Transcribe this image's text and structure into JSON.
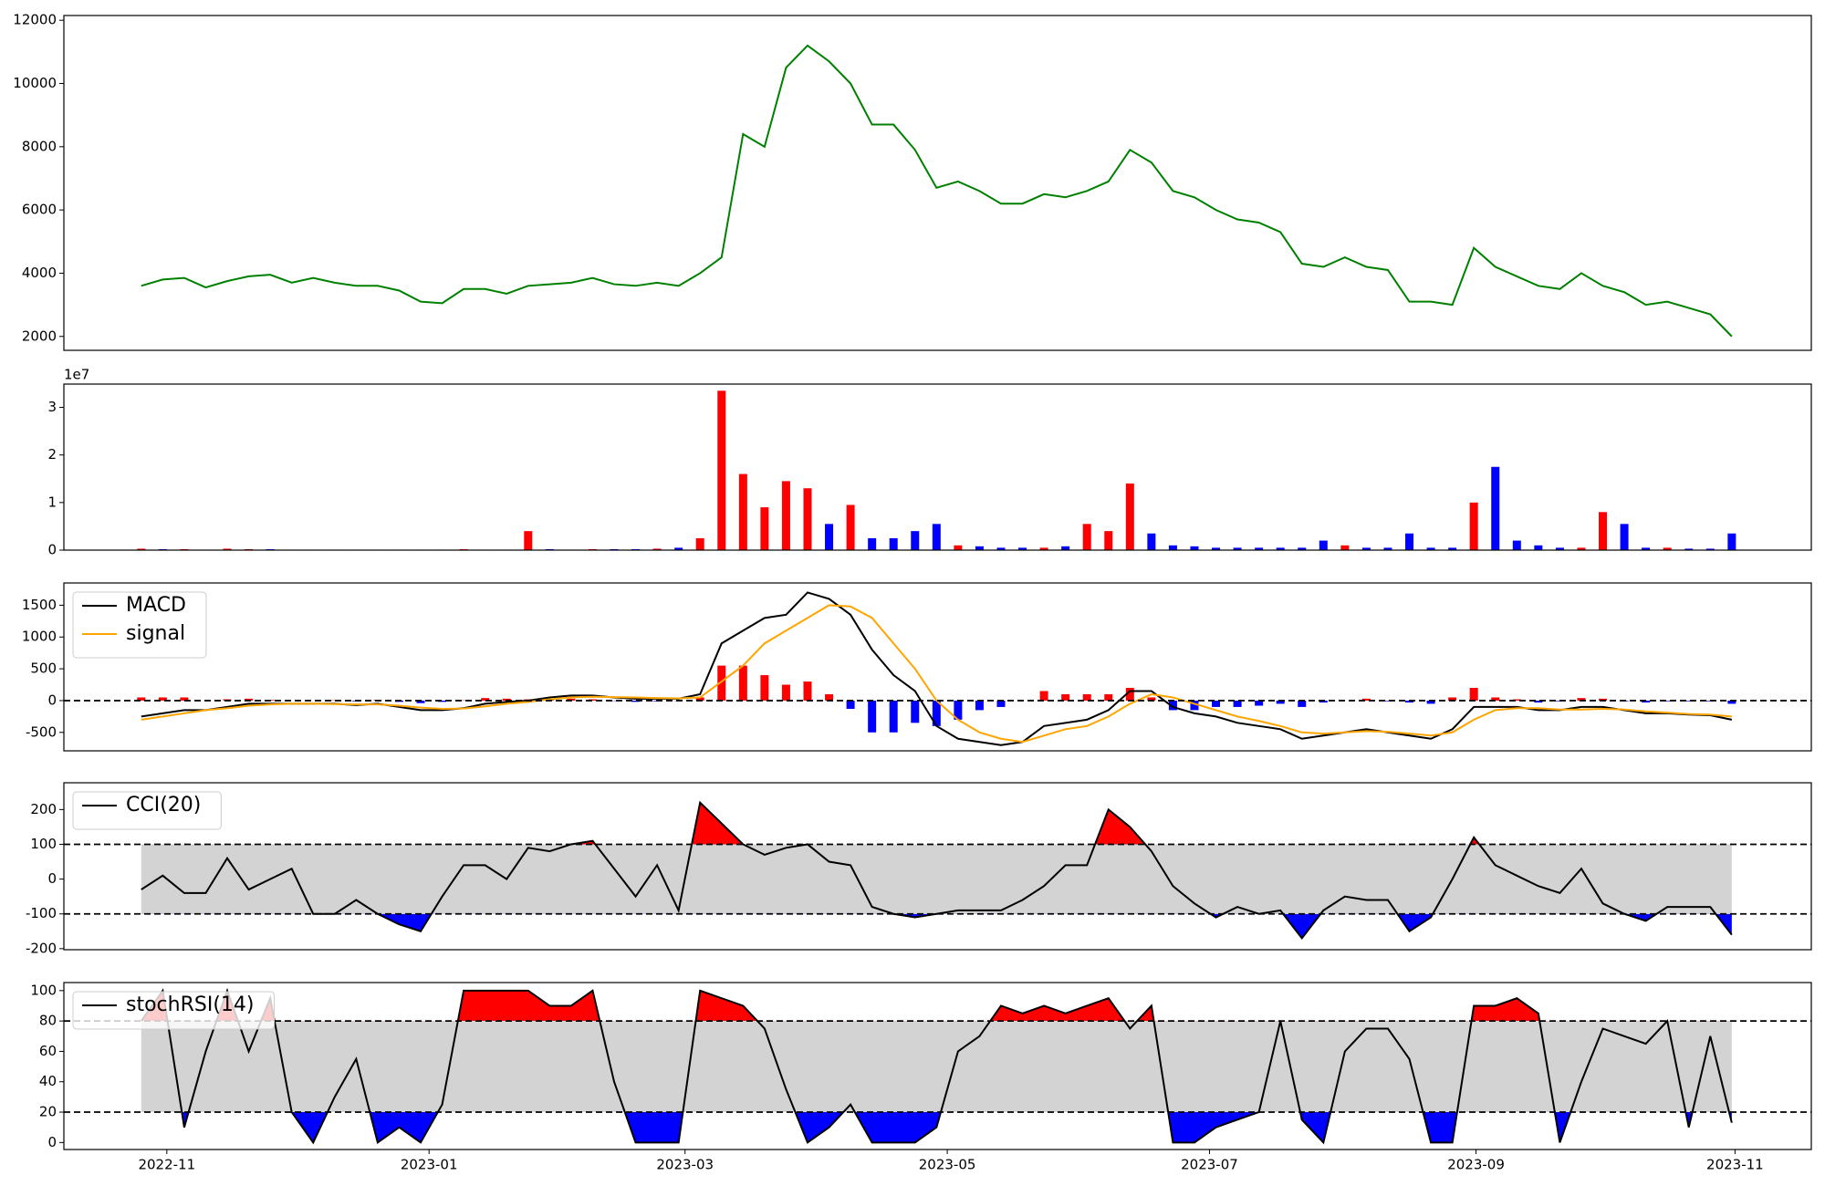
{
  "chart_data": [
    {
      "type": "line",
      "categories": [
        null,
        null,
        null,
        null,
        null,
        null,
        null,
        null,
        null,
        null,
        null,
        null,
        null,
        null,
        null,
        null,
        null,
        null,
        null,
        null,
        null,
        null,
        null,
        null,
        null,
        null,
        null,
        null,
        null,
        null,
        null,
        null,
        null,
        null,
        null,
        null,
        null,
        null,
        null,
        null,
        null,
        null,
        null,
        null,
        null,
        null,
        null,
        null,
        null,
        null,
        null,
        null,
        null,
        null,
        null,
        null,
        null,
        null,
        null,
        null,
        null,
        null,
        null,
        null,
        null,
        null,
        null,
        null,
        null,
        null,
        null,
        null,
        null,
        null,
        null
      ],
      "xlim": [
        -3.6,
        77.7
      ],
      "ylim": [
        1560,
        12150
      ],
      "yticks": [
        2000,
        4000,
        6000,
        8000,
        10000,
        12000
      ],
      "series": [
        {
          "color": "green",
          "values": [
            3600,
            3800,
            3850,
            3550,
            3750,
            3900,
            3950,
            3700,
            3850,
            3700,
            3600,
            3600,
            3450,
            3100,
            3050,
            3500,
            3500,
            3350,
            3600,
            3650,
            3700,
            3850,
            3650,
            3600,
            3700,
            3600,
            4000,
            4500,
            8400,
            8000,
            10500,
            11200,
            10700,
            10000,
            8700,
            8700,
            7900,
            6700,
            6900,
            6600,
            6200,
            6200,
            6500,
            6400,
            6600,
            6900,
            7900,
            7500,
            6600,
            6400,
            6000,
            5700,
            5600,
            5300,
            4300,
            4200,
            4500,
            4200,
            4100,
            3100,
            3100,
            3000,
            4800,
            4200,
            3900,
            3600,
            3500,
            4000,
            3600,
            3400,
            3000,
            3100,
            2900,
            2700,
            2000
          ]
        }
      ]
    },
    {
      "type": "bar",
      "categories": [
        null,
        null,
        null,
        null,
        null,
        null,
        null,
        null,
        null,
        null,
        null,
        null,
        null,
        null,
        null,
        null,
        null,
        null,
        null,
        null,
        null,
        null,
        null,
        null,
        null,
        null,
        null,
        null,
        null,
        null,
        null,
        null,
        null,
        null,
        null,
        null,
        null,
        null,
        null,
        null,
        null,
        null,
        null,
        null,
        null,
        null,
        null,
        null,
        null,
        null,
        null,
        null,
        null,
        null,
        null,
        null,
        null,
        null,
        null,
        null,
        null,
        null,
        null,
        null,
        null,
        null,
        null,
        null,
        null,
        null,
        null,
        null,
        null,
        null,
        null
      ],
      "xlim": [
        -3.6,
        77.7
      ],
      "ylim": [
        0,
        3.49
      ],
      "yticks": [
        0,
        1,
        2,
        3
      ],
      "offset_label": "1e7",
      "values": [
        0.03,
        0.02,
        0.02,
        0.01,
        0.03,
        0.02,
        0.02,
        0.01,
        0.01,
        0.01,
        0.01,
        0.01,
        0.01,
        0.01,
        0.01,
        0.02,
        0.01,
        0.01,
        0.4,
        0.02,
        0.01,
        0.02,
        0.02,
        0.02,
        0.03,
        0.05,
        0.25,
        3.35,
        1.6,
        0.9,
        1.45,
        1.3,
        0.55,
        0.95,
        0.25,
        0.25,
        0.4,
        0.55,
        0.1,
        0.08,
        0.05,
        0.05,
        0.05,
        0.08,
        0.55,
        0.4,
        1.4,
        0.35,
        0.1,
        0.08,
        0.05,
        0.05,
        0.05,
        0.05,
        0.05,
        0.2,
        0.1,
        0.05,
        0.05,
        0.35,
        0.05,
        0.05,
        1.0,
        1.75,
        0.2,
        0.1,
        0.05,
        0.05,
        0.8,
        0.55,
        0.05,
        0.05,
        0.03,
        0.03,
        0.35
      ],
      "colors": [
        "red",
        "blue",
        "red",
        "blue",
        "red",
        "red",
        "blue",
        "blue",
        "red",
        "blue",
        "blue",
        "red",
        "blue",
        "blue",
        "blue",
        "red",
        "red",
        "blue",
        "red",
        "blue",
        "red",
        "red",
        "blue",
        "blue",
        "red",
        "blue",
        "red",
        "red",
        "red",
        "red",
        "red",
        "red",
        "blue",
        "red",
        "blue",
        "blue",
        "blue",
        "blue",
        "red",
        "blue",
        "blue",
        "blue",
        "red",
        "blue",
        "red",
        "red",
        "red",
        "blue",
        "blue",
        "blue",
        "blue",
        "blue",
        "blue",
        "blue",
        "blue",
        "blue",
        "red",
        "blue",
        "blue",
        "blue",
        "blue",
        "blue",
        "red",
        "blue",
        "blue",
        "blue",
        "blue",
        "red",
        "red",
        "blue",
        "blue",
        "red",
        "blue",
        "blue",
        "blue"
      ]
    },
    {
      "type": "line",
      "categories": [
        null,
        null,
        null,
        null,
        null,
        null,
        null,
        null,
        null,
        null,
        null,
        null,
        null,
        null,
        null,
        null,
        null,
        null,
        null,
        null,
        null,
        null,
        null,
        null,
        null,
        null,
        null,
        null,
        null,
        null,
        null,
        null,
        null,
        null,
        null,
        null,
        null,
        null,
        null,
        null,
        null,
        null,
        null,
        null,
        null,
        null,
        null,
        null,
        null,
        null,
        null,
        null,
        null,
        null,
        null,
        null,
        null,
        null,
        null,
        null,
        null,
        null,
        null,
        null,
        null,
        null,
        null,
        null,
        null,
        null,
        null,
        null,
        null,
        null,
        null
      ],
      "xlim": [
        -3.6,
        77.7
      ],
      "ylim": [
        -790,
        1850
      ],
      "yticks": [
        -500,
        0,
        500,
        1000,
        1500
      ],
      "hlines": [
        0
      ],
      "histogram": {
        "up_color": "red",
        "down_color": "blue",
        "values": [
          50,
          50,
          50,
          0,
          20,
          30,
          10,
          0,
          0,
          5,
          -10,
          10,
          -20,
          -40,
          -20,
          5,
          40,
          30,
          20,
          30,
          30,
          20,
          -5,
          -20,
          -10,
          -5,
          50,
          550,
          550,
          400,
          250,
          300,
          100,
          -130,
          -500,
          -500,
          -350,
          -400,
          -300,
          -150,
          -100,
          0,
          150,
          100,
          100,
          100,
          200,
          50,
          -150,
          -150,
          -100,
          -100,
          -80,
          -50,
          -100,
          -30,
          0,
          30,
          -10,
          -30,
          -50,
          50,
          200,
          50,
          20,
          -30,
          -10,
          40,
          30,
          -10,
          -30,
          -10,
          -10,
          -10,
          -50
        ]
      },
      "series": [
        {
          "name": "MACD",
          "color": "black",
          "values": [
            -250,
            -200,
            -150,
            -150,
            -100,
            -50,
            -50,
            -50,
            -50,
            -50,
            -70,
            -50,
            -100,
            -150,
            -150,
            -120,
            -50,
            -20,
            0,
            50,
            80,
            80,
            50,
            30,
            30,
            30,
            100,
            900,
            1100,
            1300,
            1350,
            1700,
            1600,
            1350,
            800,
            400,
            150,
            -400,
            -600,
            -650,
            -700,
            -650,
            -400,
            -350,
            -300,
            -150,
            150,
            150,
            -100,
            -200,
            -250,
            -350,
            -400,
            -450,
            -600,
            -550,
            -500,
            -450,
            -500,
            -550,
            -600,
            -450,
            -100,
            -100,
            -100,
            -150,
            -150,
            -100,
            -100,
            -150,
            -200,
            -200,
            -220,
            -230,
            -300
          ]
        },
        {
          "name": "signal",
          "color": "orange",
          "values": [
            -300,
            -250,
            -200,
            -150,
            -120,
            -80,
            -60,
            -50,
            -50,
            -55,
            -60,
            -60,
            -80,
            -110,
            -130,
            -125,
            -90,
            -50,
            -20,
            20,
            50,
            60,
            55,
            50,
            40,
            35,
            50,
            300,
            550,
            900,
            1100,
            1300,
            1500,
            1480,
            1300,
            900,
            500,
            0,
            -300,
            -500,
            -600,
            -650,
            -550,
            -450,
            -400,
            -250,
            -50,
            100,
            50,
            -50,
            -150,
            -250,
            -320,
            -400,
            -500,
            -520,
            -500,
            -480,
            -490,
            -520,
            -550,
            -500,
            -300,
            -150,
            -120,
            -120,
            -140,
            -140,
            -130,
            -140,
            -170,
            -190,
            -210,
            -220,
            -250
          ]
        }
      ]
    },
    {
      "type": "line",
      "categories": [
        null,
        null,
        null,
        null,
        null,
        null,
        null,
        null,
        null,
        null,
        null,
        null,
        null,
        null,
        null,
        null,
        null,
        null,
        null,
        null,
        null,
        null,
        null,
        null,
        null,
        null,
        null,
        null,
        null,
        null,
        null,
        null,
        null,
        null,
        null,
        null,
        null,
        null,
        null,
        null,
        null,
        null,
        null,
        null,
        null,
        null,
        null,
        null,
        null,
        null,
        null,
        null,
        null,
        null,
        null,
        null,
        null,
        null,
        null,
        null,
        null,
        null,
        null,
        null,
        null,
        null,
        null,
        null,
        null,
        null,
        null,
        null,
        null,
        null,
        null
      ],
      "xlim": [
        -3.6,
        77.7
      ],
      "ylim": [
        -203,
        277
      ],
      "yticks": [
        -200,
        -100,
        0,
        100,
        200
      ],
      "hlines": [
        100,
        -100
      ],
      "band_color": "lightgray",
      "fill_colors": [
        "red",
        "blue"
      ],
      "series": [
        {
          "name": "CCI(20)",
          "color": "black",
          "values": [
            -30,
            10,
            -40,
            -40,
            60,
            -30,
            0,
            30,
            -100,
            -100,
            -60,
            -100,
            -130,
            -150,
            -50,
            40,
            40,
            0,
            90,
            80,
            100,
            110,
            30,
            -50,
            40,
            -90,
            220,
            160,
            100,
            70,
            90,
            100,
            50,
            40,
            -80,
            -100,
            -110,
            -100,
            -90,
            -90,
            -90,
            -60,
            -20,
            40,
            40,
            200,
            150,
            80,
            -20,
            -70,
            -110,
            -80,
            -100,
            -90,
            -170,
            -90,
            -50,
            -60,
            -60,
            -150,
            -110,
            0,
            120,
            40,
            10,
            -20,
            -40,
            30,
            -70,
            -100,
            -120,
            -80,
            -80,
            -80,
            -160
          ]
        }
      ]
    },
    {
      "type": "line",
      "categories": [
        null,
        null,
        null,
        null,
        null,
        null,
        null,
        null,
        null,
        null,
        null,
        null,
        null,
        null,
        null,
        null,
        null,
        null,
        null,
        null,
        null,
        null,
        null,
        null,
        null,
        null,
        null,
        null,
        null,
        null,
        null,
        null,
        null,
        null,
        null,
        null,
        null,
        null,
        null,
        null,
        null,
        null,
        null,
        null,
        null,
        null,
        null,
        null,
        null,
        null,
        null,
        null,
        null,
        null,
        null,
        null,
        null,
        null,
        null,
        null,
        null,
        null,
        null,
        null,
        null,
        null,
        null,
        null,
        null,
        null,
        null,
        null,
        null,
        null,
        null
      ],
      "xlim": [
        -3.6,
        77.7
      ],
      "ylim": [
        -4.6,
        105.3
      ],
      "yticks": [
        0,
        20,
        40,
        60,
        80,
        100
      ],
      "hlines": [
        80,
        20
      ],
      "band_color": "lightgray",
      "fill_colors": [
        "red",
        "blue"
      ],
      "xticks": [
        {
          "value": 1.19,
          "label": "2022-11"
        },
        {
          "value": 13.39,
          "label": "2023-01"
        },
        {
          "value": 25.3,
          "label": "2023-03"
        },
        {
          "value": 37.5,
          "label": "2023-05"
        },
        {
          "value": 49.7,
          "label": "2023-07"
        },
        {
          "value": 62.1,
          "label": "2023-09"
        },
        {
          "value": 74.15,
          "label": "2023-11"
        }
      ],
      "series": [
        {
          "name": "stochRSI(14)",
          "color": "black",
          "values": [
            80,
            100,
            10,
            60,
            100,
            60,
            95,
            20,
            0,
            30,
            55,
            0,
            10,
            0,
            25,
            100,
            100,
            100,
            100,
            90,
            90,
            100,
            40,
            0,
            0,
            0,
            100,
            95,
            90,
            75,
            35,
            0,
            10,
            25,
            0,
            0,
            0,
            10,
            60,
            70,
            90,
            85,
            90,
            85,
            90,
            95,
            75,
            90,
            0,
            0,
            10,
            15,
            20,
            80,
            15,
            0,
            60,
            75,
            75,
            55,
            0,
            0,
            90,
            90,
            95,
            85,
            0,
            40,
            75,
            70,
            65,
            80,
            10,
            70,
            13
          ]
        }
      ]
    }
  ]
}
